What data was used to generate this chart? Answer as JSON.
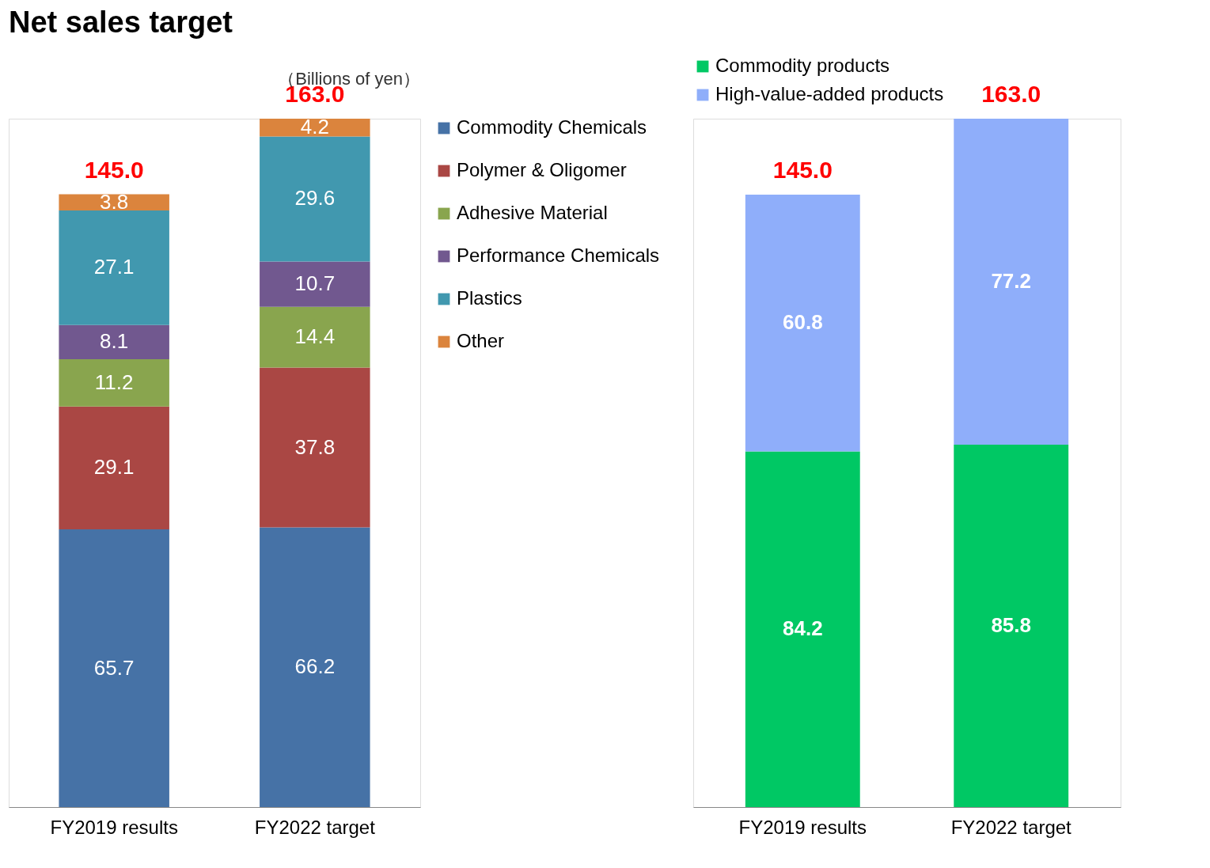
{
  "chart_data": [
    {
      "type": "bar",
      "title": "Net sales target",
      "annotations": [
        "（Billions of yen）"
      ],
      "categories": [
        "FY2019 results",
        "FY2022 target"
      ],
      "stacked": true,
      "data_labels": true,
      "legend": "right",
      "tick_labels": "x",
      "totals": [
        "145.0",
        "163.0"
      ],
      "series": [
        {
          "name": "Commodity Chemicals",
          "color": "#4672a6",
          "values": [
            65.7,
            66.2
          ]
        },
        {
          "name": "Polymer & Oligomer",
          "color": "#aa4744",
          "values": [
            29.1,
            37.8
          ]
        },
        {
          "name": "Adhesive Material",
          "color": "#89a54e",
          "values": [
            11.2,
            14.4
          ]
        },
        {
          "name": "Performance Chemicals",
          "color": "#71588f",
          "values": [
            8.1,
            10.7
          ]
        },
        {
          "name": "Plastics",
          "color": "#4198af",
          "values": [
            27.1,
            29.6
          ]
        },
        {
          "name": "Other",
          "color": "#db843d",
          "values": [
            3.8,
            4.2
          ]
        }
      ]
    },
    {
      "type": "bar",
      "categories": [
        "FY2019 results",
        "FY2022 target"
      ],
      "stacked": true,
      "data_labels": true,
      "legend": "top",
      "tick_labels": "x",
      "totals": [
        "145.0",
        "163.0"
      ],
      "series": [
        {
          "name": "Commodity products",
          "color": "#00c864",
          "values": [
            84.2,
            85.8
          ]
        },
        {
          "name": "High-value-added products",
          "color": "#8faefa",
          "values": [
            60.8,
            77.2
          ]
        }
      ]
    }
  ]
}
